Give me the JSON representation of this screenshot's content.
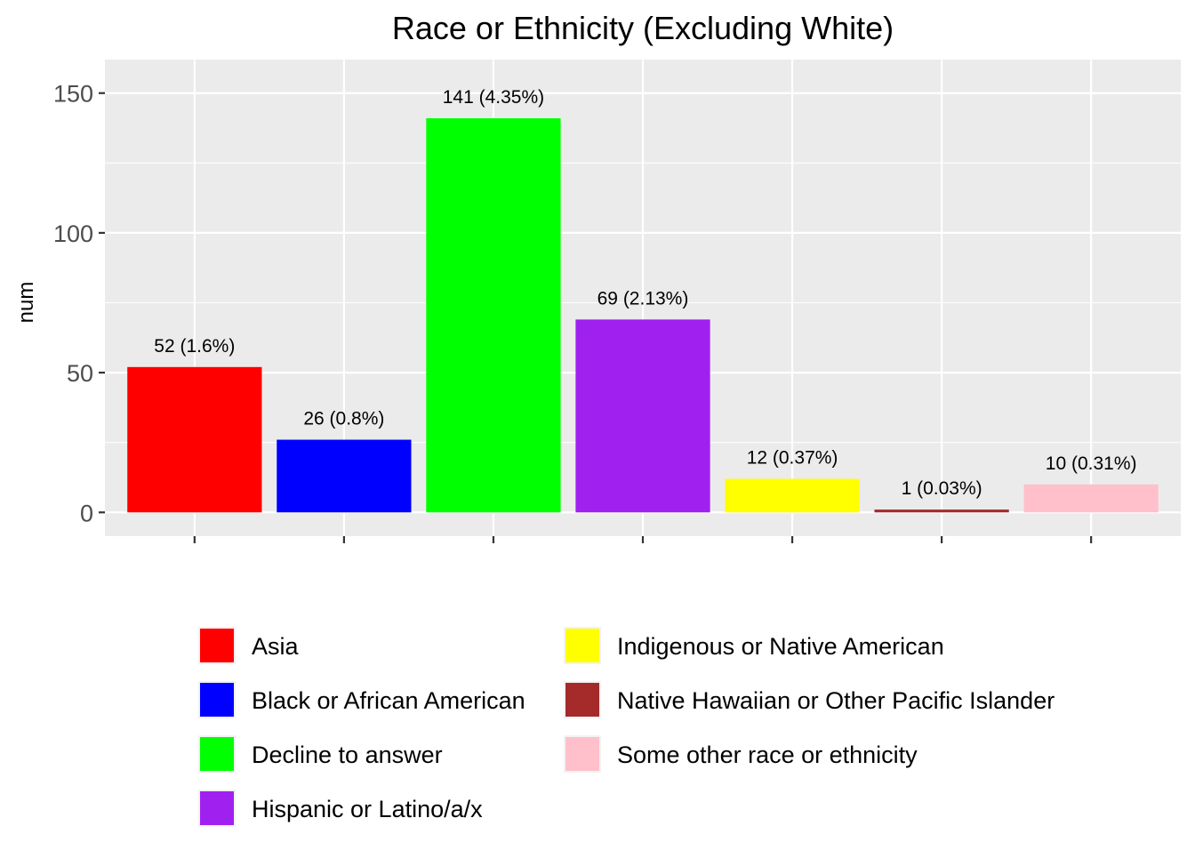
{
  "chart_data": {
    "type": "bar",
    "title": "Race or Ethnicity (Excluding White)",
    "xlabel": "",
    "ylabel": "num",
    "ylim": [
      -8.5,
      162
    ],
    "yticks": [
      0,
      50,
      100,
      150
    ],
    "grid": true,
    "legend_position": "bottom",
    "categories": [
      "Asia",
      "Black or African American",
      "Decline to answer",
      "Hispanic or Latino/a/x",
      "Indigenous or Native American",
      "Native Hawaiian or Other Pacific Islander",
      "Some other race or ethnicity"
    ],
    "values": [
      52,
      26,
      141,
      69,
      12,
      1,
      10
    ],
    "labels": [
      "52 (1.6%)",
      "26 (0.8%)",
      "141 (4.35%)",
      "69 (2.13%)",
      "12 (0.37%)",
      "1 (0.03%)",
      "10 (0.31%)"
    ],
    "colors": [
      "#ff0000",
      "#0000ff",
      "#00ff00",
      "#a020f0",
      "#ffff00",
      "#a52a2a",
      "#ffc0cb"
    ]
  }
}
